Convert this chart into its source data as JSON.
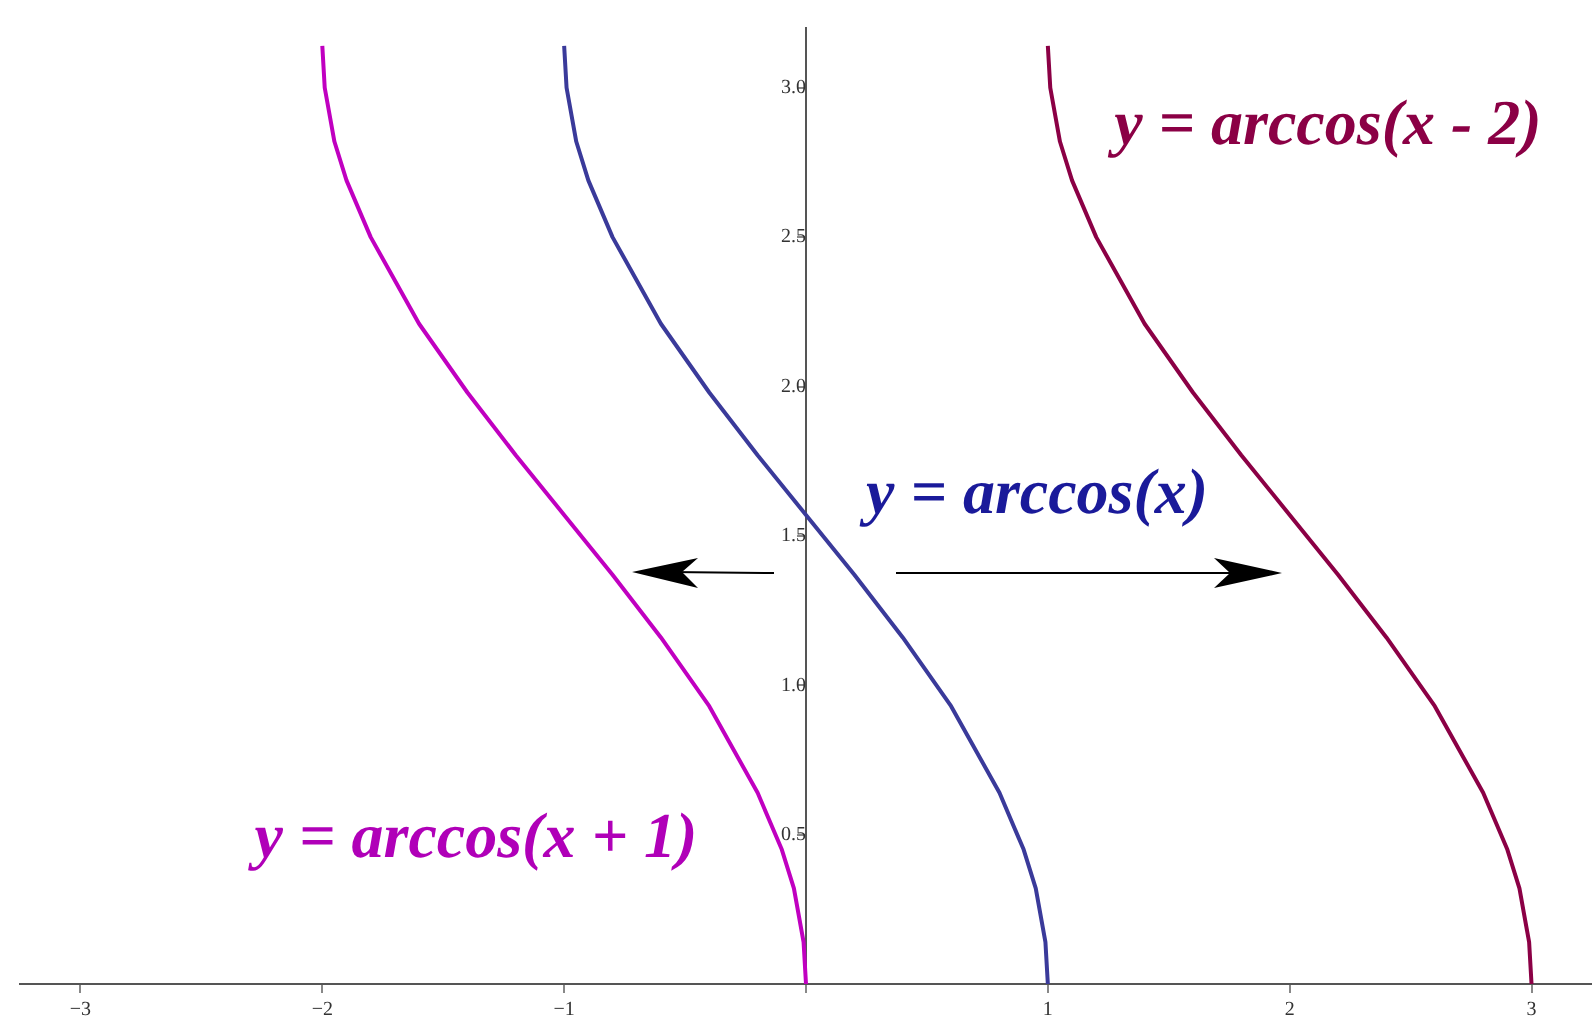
{
  "chart_data": {
    "type": "line",
    "xlim": [
      -3.25,
      3.25
    ],
    "ylim": [
      0,
      3.2
    ],
    "xticks": [
      {
        "value": -3,
        "label": "−3"
      },
      {
        "value": -2,
        "label": "−2"
      },
      {
        "value": -1,
        "label": "−1"
      },
      {
        "value": 0,
        "label": null
      },
      1,
      2,
      3
    ],
    "yticks": [
      {
        "value": 0,
        "label": null
      },
      0.5,
      {
        "value": 1,
        "label": "1.0"
      },
      1.5,
      {
        "value": 2,
        "label": "2.0"
      },
      2.5,
      {
        "value": 3,
        "label": "3.0"
      }
    ],
    "grid": false,
    "legend": false,
    "marker": "none",
    "line_style": "solid",
    "series": [
      {
        "name": "y = arccos(x + 1)",
        "color": "#c000c0",
        "x": [
          -2,
          -1.99,
          -1.95,
          -1.9,
          -1.8,
          -1.6,
          -1.4,
          -1.2,
          -1,
          -0.8,
          -0.6,
          -0.4,
          -0.2,
          -0.1,
          -0.05,
          -0.01,
          0
        ],
        "values": [
          3.14,
          3.0,
          2.82,
          2.69,
          2.5,
          2.21,
          1.98,
          1.77,
          1.57,
          1.37,
          1.16,
          0.93,
          0.64,
          0.45,
          0.32,
          0.14,
          0
        ]
      },
      {
        "name": "y = arccos(x)",
        "color": "#3a3a9a",
        "x": [
          -1,
          -0.99,
          -0.95,
          -0.9,
          -0.8,
          -0.6,
          -0.4,
          -0.2,
          0,
          0.2,
          0.4,
          0.6,
          0.8,
          0.9,
          0.95,
          0.99,
          1
        ],
        "values": [
          3.14,
          3.0,
          2.82,
          2.69,
          2.5,
          2.21,
          1.98,
          1.77,
          1.57,
          1.37,
          1.16,
          0.93,
          0.64,
          0.45,
          0.32,
          0.14,
          0
        ]
      },
      {
        "name": "y = arccos(x - 2)",
        "color": "#8b0045",
        "x": [
          1,
          1.01,
          1.05,
          1.1,
          1.2,
          1.4,
          1.6,
          1.8,
          2,
          2.2,
          2.4,
          2.6,
          2.8,
          2.9,
          2.95,
          2.99,
          3
        ],
        "values": [
          3.14,
          3.0,
          2.82,
          2.69,
          2.5,
          2.21,
          1.98,
          1.77,
          1.57,
          1.37,
          1.16,
          0.93,
          0.64,
          0.45,
          0.32,
          0.14,
          0
        ]
      }
    ]
  }
}
